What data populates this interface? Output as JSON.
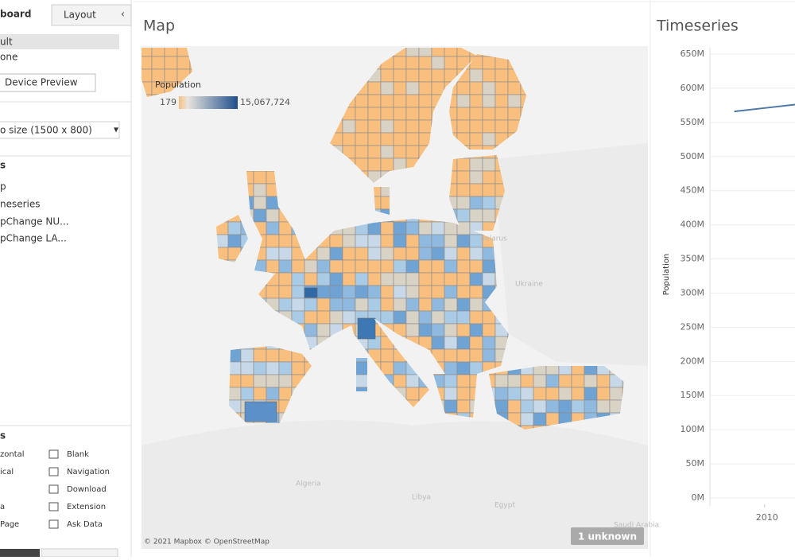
{
  "sidebar": {
    "tabs": [
      "board",
      "Layout"
    ],
    "collapse": "‹",
    "devices": [
      "ult",
      "one"
    ],
    "device_preview": "Device Preview",
    "size": "o size (1500 x 800)",
    "sheets_header": "s",
    "sheets": [
      "p",
      "neseries",
      "pChange NU...",
      "pChange LA..."
    ],
    "objects_header": "s",
    "objects": [
      [
        "zontal",
        "Blank"
      ],
      [
        "ical",
        "Navigation"
      ],
      [
        "",
        "Download"
      ],
      [
        "a",
        "Extension"
      ],
      [
        "Page",
        "Ask Data"
      ]
    ]
  },
  "map": {
    "title": "Map",
    "legend_title": "Population",
    "legend_min": "179",
    "legend_max": "15,067,724",
    "attribution": "© 2021 Mapbox © OpenStreetMap",
    "unknown": "1 unknown",
    "places": [
      "Belarus",
      "Ukraine",
      "Algeria",
      "Libya",
      "Egypt",
      "Saudi Arabia"
    ]
  },
  "chart_data": {
    "type": "line",
    "title": "Timeseries",
    "y_label": "Population",
    "x": [
      2009,
      2010,
      2011
    ],
    "xlim": [
      2008.2,
      2011
    ],
    "xticks": [
      2010
    ],
    "series": [
      {
        "name": "Population",
        "color": "#4e79a7",
        "values": [
          566000000,
          571000000,
          576000000
        ]
      }
    ],
    "ylim": [
      0,
      650000000
    ],
    "yticks": [
      {
        "value": 0,
        "label": "0M"
      },
      {
        "value": 50000000,
        "label": "50M"
      },
      {
        "value": 100000000,
        "label": "100M"
      },
      {
        "value": 150000000,
        "label": "150M"
      },
      {
        "value": 200000000,
        "label": "200M"
      },
      {
        "value": 250000000,
        "label": "250M"
      },
      {
        "value": 300000000,
        "label": "300M"
      },
      {
        "value": 350000000,
        "label": "350M"
      },
      {
        "value": 400000000,
        "label": "400M"
      },
      {
        "value": 450000000,
        "label": "450M"
      },
      {
        "value": 500000000,
        "label": "500M"
      },
      {
        "value": 550000000,
        "label": "550M"
      },
      {
        "value": 600000000,
        "label": "600M"
      },
      {
        "value": 650000000,
        "label": "650M"
      }
    ],
    "grid": true
  }
}
